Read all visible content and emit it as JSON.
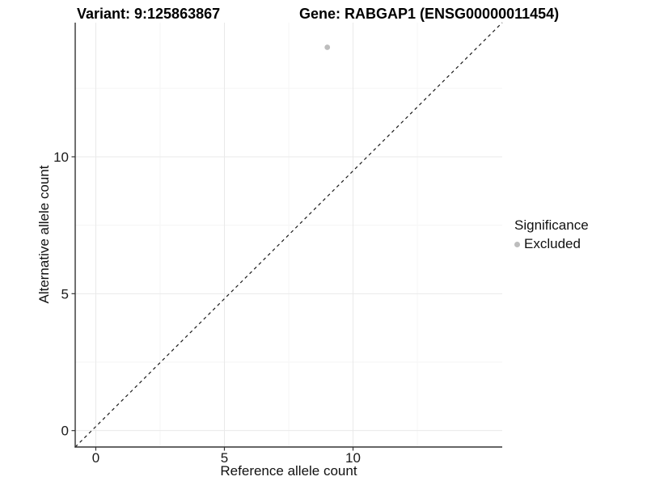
{
  "chart_data": {
    "type": "scatter",
    "titles": {
      "variant": "Variant: 9:125863867",
      "gene": "Gene: RABGAP1 (ENSG00000011454)"
    },
    "xlabel": "Reference allele count",
    "ylabel": "Alternative allele count",
    "x_ticks": [
      0,
      5,
      10
    ],
    "y_ticks": [
      0,
      5,
      10
    ],
    "xlim": [
      -0.8,
      15.8
    ],
    "ylim": [
      -0.6,
      14.9
    ],
    "grid": "major and minor gridlines, light gray, white panel background",
    "reference_line": {
      "type": "identity",
      "equation": "y = x",
      "style": "dashed",
      "color": "#1a1a1a"
    },
    "series": [
      {
        "name": "Excluded",
        "color": "#bdbdbd",
        "points": [
          {
            "x": 9,
            "y": 14
          }
        ]
      }
    ],
    "legend": {
      "title": "Significance",
      "position": "right",
      "items": [
        {
          "label": "Excluded",
          "color": "#bdbdbd",
          "marker": "circle"
        }
      ]
    }
  },
  "colors": {
    "background": "#ffffff",
    "axis_line": "#333333",
    "grid_major": "#e9e9e9",
    "grid_minor": "#f5f5f5",
    "tick_text": "#1a1a1a",
    "title_text": "#000000"
  }
}
